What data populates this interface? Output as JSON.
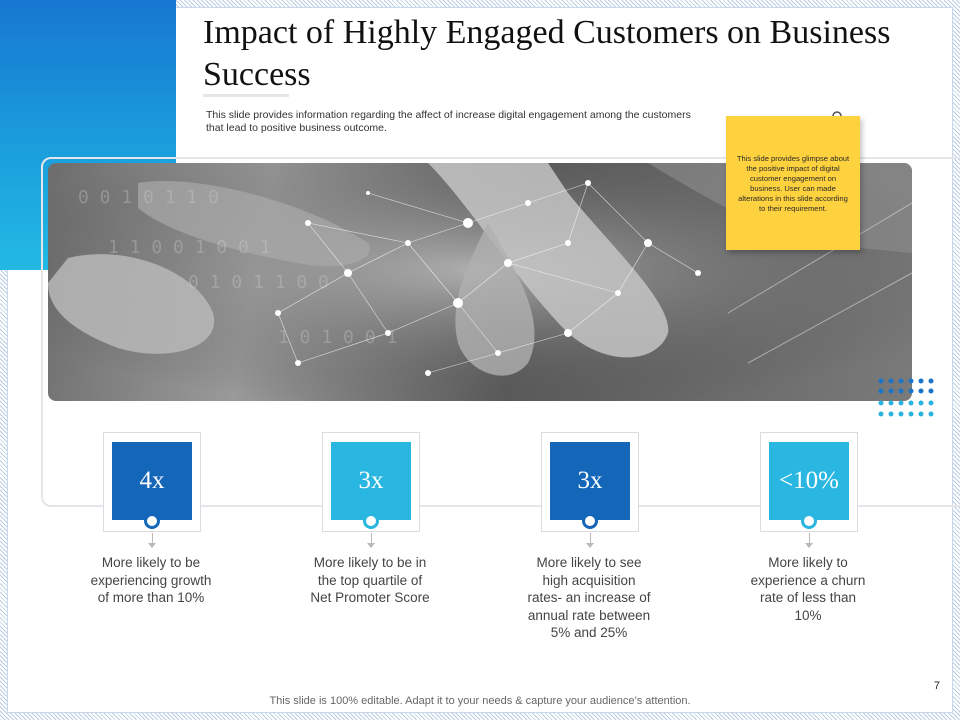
{
  "slide": {
    "title": "Impact of Highly Engaged Customers on Business Success",
    "subtitle": "This slide provides information regarding the affect of increase digital engagement among the customers that lead to positive business outcome.",
    "sticky_note": "This slide provides glimpse about the positive impact of digital customer engagement on business. User can made alterations in this slide according to their requirement.",
    "page_number": "7",
    "footer": "This slide is 100% editable. Adapt it to your needs & capture your audience’s attention."
  },
  "stats": [
    {
      "value": "4x",
      "description": "More likely to be experiencing growth of more than 10%",
      "color": "#1466b8"
    },
    {
      "value": "3x",
      "description": "More likely to be in the top quartile of Net Promoter Score",
      "color": "#29b6e0"
    },
    {
      "value": "3x",
      "description": "More likely to see high acquisition rates- an increase of annual rate between 5% and 25%",
      "color": "#1466b8"
    },
    {
      "value": "<10%",
      "description": "More likely to experience a churn rate of less than 10%",
      "color": "#29b6e0"
    }
  ],
  "colors": {
    "dark_blue": "#1466b8",
    "light_blue": "#29b6e0",
    "sticky_yellow": "#fdd23e"
  }
}
